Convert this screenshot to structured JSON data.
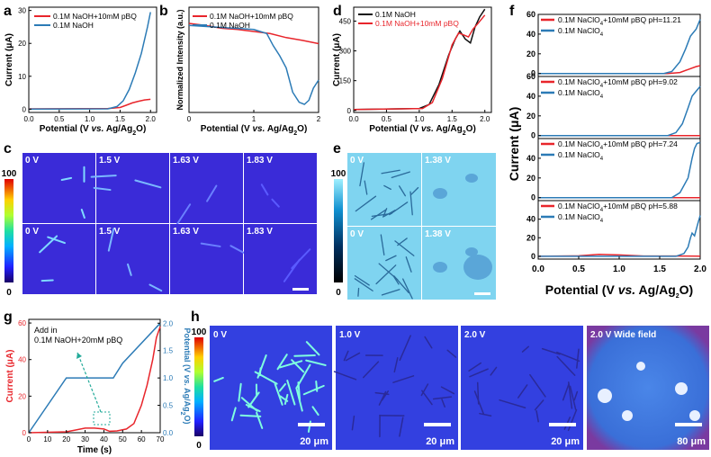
{
  "panels": {
    "a": "a",
    "b": "b",
    "c": "c",
    "d": "d",
    "e": "e",
    "f": "f",
    "g": "g",
    "h": "h"
  },
  "colors": {
    "red": "#e8252b",
    "blue": "#2c7bb6",
    "black": "#111111"
  },
  "chart_data": [
    {
      "id": "a",
      "type": "line",
      "xlabel": "Potential (V vs. Ag/Ag2O)",
      "ylabel": "Current (μA)",
      "xlim": [
        0,
        2.1
      ],
      "ylim": [
        -1,
        31
      ],
      "xticks": [
        "0.0",
        "0.5",
        "1.0",
        "1.5",
        "2.0"
      ],
      "yticks": [
        "0",
        "10",
        "20",
        "30"
      ],
      "legend": "top-left",
      "series": [
        {
          "name": "0.1M NaOH+10mM pBQ",
          "color": "#e8252b",
          "points": [
            [
              0,
              0.1
            ],
            [
              1.3,
              0.2
            ],
            [
              1.5,
              0.5
            ],
            [
              1.6,
              1.2
            ],
            [
              1.7,
              1.9
            ],
            [
              1.8,
              2.4
            ],
            [
              1.9,
              2.8
            ],
            [
              2.0,
              3.0
            ]
          ]
        },
        {
          "name": "0.1M NaOH",
          "color": "#2c7bb6",
          "points": [
            [
              0,
              0
            ],
            [
              1.3,
              0.1
            ],
            [
              1.45,
              0.8
            ],
            [
              1.55,
              2.5
            ],
            [
              1.65,
              6
            ],
            [
              1.75,
              11
            ],
            [
              1.85,
              17
            ],
            [
              1.95,
              25
            ],
            [
              2.0,
              29.5
            ]
          ]
        }
      ]
    },
    {
      "id": "b",
      "type": "line",
      "xlabel": "Potential (V vs. Ag/Ag2O)",
      "ylabel": "Normalized Intensity (a.u.)",
      "xlim": [
        0,
        2
      ],
      "ylim": [
        0.78,
        1.04
      ],
      "xticks": [
        "0",
        "1",
        "2"
      ],
      "legend": "top-right",
      "series": [
        {
          "name": "0.1M NaOH+10mM pBQ",
          "color": "#e8252b",
          "points": [
            [
              0,
              1.0
            ],
            [
              0.25,
              0.995
            ],
            [
              0.5,
              0.988
            ],
            [
              0.75,
              0.985
            ],
            [
              1.0,
              0.98
            ],
            [
              1.25,
              0.975
            ],
            [
              1.5,
              0.965
            ],
            [
              1.75,
              0.958
            ],
            [
              2.0,
              0.95
            ]
          ]
        },
        {
          "name": "0.1M NaOH",
          "color": "#2c7bb6",
          "points": [
            [
              0,
              0.995
            ],
            [
              0.5,
              0.99
            ],
            [
              1.0,
              0.985
            ],
            [
              1.2,
              0.975
            ],
            [
              1.3,
              0.945
            ],
            [
              1.4,
              0.92
            ],
            [
              1.5,
              0.89
            ],
            [
              1.6,
              0.83
            ],
            [
              1.7,
              0.805
            ],
            [
              1.78,
              0.8
            ],
            [
              1.85,
              0.81
            ],
            [
              1.92,
              0.84
            ],
            [
              2.0,
              0.86
            ]
          ]
        }
      ]
    },
    {
      "id": "d",
      "type": "line",
      "xlabel": "Potential (V vs. Ag/Ag2O)",
      "ylabel": "Current (μA)",
      "xlim": [
        0,
        2.1
      ],
      "ylim": [
        -10,
        520
      ],
      "xticks": [
        "0.0",
        "0.5",
        "1.0",
        "1.5",
        "2.0"
      ],
      "yticks": [
        "0",
        "150",
        "300",
        "450"
      ],
      "legend": "top-left",
      "series": [
        {
          "name": "0.1M NaOH",
          "color": "#111111",
          "points": [
            [
              0,
              5
            ],
            [
              1.0,
              10
            ],
            [
              1.15,
              30
            ],
            [
              1.3,
              130
            ],
            [
              1.45,
              280
            ],
            [
              1.55,
              360
            ],
            [
              1.62,
              400
            ],
            [
              1.7,
              360
            ],
            [
              1.78,
              340
            ],
            [
              1.85,
              420
            ],
            [
              1.92,
              470
            ],
            [
              2.0,
              510
            ]
          ]
        },
        {
          "name": "0.1M NaOH+10mM pBQ",
          "color": "#e8252b",
          "points": [
            [
              0,
              5
            ],
            [
              1.05,
              10
            ],
            [
              1.2,
              40
            ],
            [
              1.35,
              160
            ],
            [
              1.5,
              330
            ],
            [
              1.6,
              390
            ],
            [
              1.68,
              380
            ],
            [
              1.75,
              370
            ],
            [
              1.82,
              410
            ],
            [
              1.9,
              440
            ],
            [
              2.0,
              480
            ]
          ]
        }
      ]
    },
    {
      "id": "f",
      "type": "line",
      "xlabel": "Potential (V vs. Ag/Ag2O)",
      "ylabel": "Current (μA)",
      "xlim": [
        0,
        2.0
      ],
      "xticks": [
        "0.0",
        "0.5",
        "1.0",
        "1.5",
        "2.0"
      ],
      "subplots": [
        {
          "yticks": [
            "0",
            "20",
            "40",
            "60"
          ],
          "ylim": [
            -3,
            60
          ],
          "series": [
            {
              "name": "0.1M NaClO4+10mM pBQ pH=11.21",
              "color": "#e8252b",
              "points": [
                [
                  0,
                  0
                ],
                [
                  1.6,
                  0
                ],
                [
                  1.75,
                  1
                ],
                [
                  1.85,
                  4
                ],
                [
                  1.95,
                  7
                ],
                [
                  2.0,
                  8
                ]
              ]
            },
            {
              "name": "0.1M NaClO4",
              "color": "#2c7bb6",
              "points": [
                [
                  0,
                  0
                ],
                [
                  1.55,
                  0
                ],
                [
                  1.65,
                  2
                ],
                [
                  1.75,
                  12
                ],
                [
                  1.82,
                  25
                ],
                [
                  1.88,
                  38
                ],
                [
                  1.95,
                  45
                ],
                [
                  2.0,
                  55
                ]
              ]
            }
          ]
        },
        {
          "yticks": [
            "0",
            "20",
            "40",
            "60"
          ],
          "ylim": [
            -3,
            60
          ],
          "series": [
            {
              "name": "0.1M NaClO4+10mM pBQ pH=9.02",
              "color": "#e8252b",
              "points": [
                [
                  0,
                  0
                ],
                [
                  2.0,
                  0
                ]
              ]
            },
            {
              "name": "0.1M NaClO4",
              "color": "#2c7bb6",
              "points": [
                [
                  0,
                  0
                ],
                [
                  1.6,
                  0
                ],
                [
                  1.7,
                  3
                ],
                [
                  1.78,
                  12
                ],
                [
                  1.85,
                  28
                ],
                [
                  1.9,
                  40
                ],
                [
                  1.95,
                  45
                ],
                [
                  2.0,
                  50
                ]
              ]
            }
          ]
        },
        {
          "yticks": [
            "0",
            "20",
            "40"
          ],
          "ylim": [
            -3,
            60
          ],
          "series": [
            {
              "name": "0.1M NaClO4+10mM pBQ pH=7.24",
              "color": "#e8252b",
              "points": [
                [
                  0,
                  0
                ],
                [
                  2.0,
                  0
                ]
              ]
            },
            {
              "name": "0.1M NaClO4",
              "color": "#2c7bb6",
              "points": [
                [
                  0,
                  0
                ],
                [
                  1.65,
                  0
                ],
                [
                  1.75,
                  5
                ],
                [
                  1.85,
                  20
                ],
                [
                  1.9,
                  40
                ],
                [
                  1.93,
                  50
                ],
                [
                  1.96,
                  55
                ],
                [
                  2.0,
                  56
                ]
              ]
            }
          ]
        },
        {
          "yticks": [
            "0",
            "20",
            "40"
          ],
          "ylim": [
            -3,
            60
          ],
          "series": [
            {
              "name": "0.1M NaClO4+10mM pBQ pH=5.88",
              "color": "#e8252b",
              "points": [
                [
                  0,
                  0
                ],
                [
                  0.5,
                  0.5
                ],
                [
                  0.75,
                  2
                ],
                [
                  1.0,
                  1.5
                ],
                [
                  1.3,
                  0.3
                ],
                [
                  2.0,
                  0.2
                ]
              ]
            },
            {
              "name": "0.1M NaClO4",
              "color": "#2c7bb6",
              "points": [
                [
                  0,
                  0
                ],
                [
                  1.7,
                  0
                ],
                [
                  1.8,
                  3
                ],
                [
                  1.85,
                  10
                ],
                [
                  1.88,
                  20
                ],
                [
                  1.9,
                  25
                ],
                [
                  1.93,
                  22
                ],
                [
                  1.97,
                  35
                ],
                [
                  2.0,
                  44
                ]
              ]
            }
          ]
        }
      ]
    },
    {
      "id": "g",
      "type": "line",
      "xlabel": "Time (s)",
      "ylabel": "Current (μA)",
      "ylabel_right": "Potential (V vs. Ag/Ag2O)",
      "xlim": [
        0,
        70
      ],
      "ylim": [
        0,
        62
      ],
      "ylim_right": [
        0,
        2.07
      ],
      "xticks": [
        "0",
        "10",
        "20",
        "30",
        "40",
        "50",
        "60",
        "70"
      ],
      "yticks": [
        "0",
        "20",
        "40",
        "60"
      ],
      "yticks_right": [
        "0.0",
        "0.5",
        "1.0",
        "1.5",
        "2.0"
      ],
      "annotation": [
        "Add in",
        "0.1M NaOH+20mM pBQ"
      ],
      "series": [
        {
          "name": "Current",
          "color": "#e8252b",
          "axis": "left",
          "points": [
            [
              0,
              0
            ],
            [
              20,
              0.5
            ],
            [
              25,
              1.5
            ],
            [
              30,
              2.5
            ],
            [
              35,
              2.5
            ],
            [
              40,
              2.0
            ],
            [
              43,
              0.8
            ],
            [
              47,
              1.0
            ],
            [
              52,
              2
            ],
            [
              56,
              5
            ],
            [
              60,
              15
            ],
            [
              63,
              26
            ],
            [
              66,
              40
            ],
            [
              68,
              52
            ],
            [
              70,
              58
            ]
          ]
        },
        {
          "name": "Potential",
          "color": "#2c7bb6",
          "axis": "right",
          "points": [
            [
              0,
              0
            ],
            [
              20,
              1.0
            ],
            [
              40,
              1.0
            ],
            [
              45,
              1.0
            ],
            [
              50,
              1.27
            ],
            [
              70,
              2.0
            ]
          ]
        }
      ]
    }
  ],
  "images": {
    "c": {
      "colorbar_max": "100",
      "colorbar_min": "0",
      "labels_top": [
        "0 V",
        "1.5 V",
        "1.63 V",
        "1.83 V"
      ],
      "labels_bottom": [
        "0 V",
        "1.5 V",
        "1.63 V",
        "1.83 V"
      ]
    },
    "e": {
      "colorbar_max": "100",
      "colorbar_min": "0",
      "labels_top": [
        "0 V",
        "1.38 V"
      ],
      "labels_bottom": [
        "0 V",
        "1.38 V"
      ]
    },
    "h": {
      "colorbar_max": "100",
      "colorbar_min": "0",
      "labels": [
        "0 V",
        "1.0 V",
        "2.0 V",
        "2.0 V Wide field"
      ],
      "scales": [
        "20 μm",
        "20 μm",
        "20 μm",
        "80 μm"
      ]
    }
  }
}
